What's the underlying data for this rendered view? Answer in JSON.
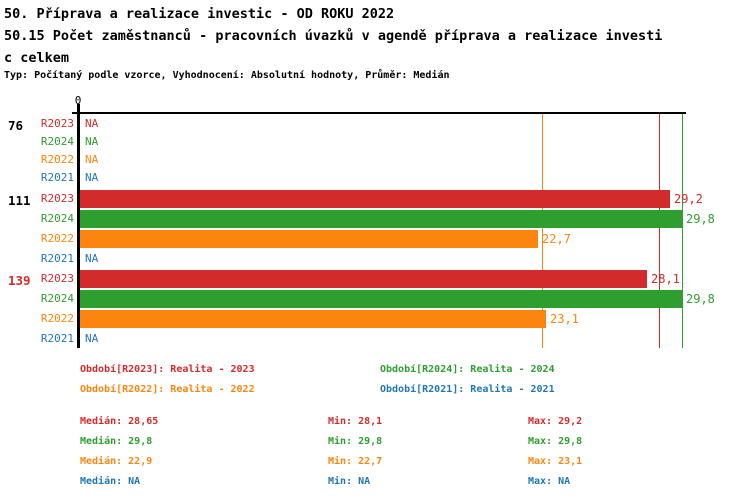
{
  "title_lines": [
    "50. Příprava a realizace investic - OD ROKU 2022",
    "50.15 Počet zaměstnanců - pracovních úvazků v agendě příprava a realizace investi",
    "c celkem"
  ],
  "subtitle": "Typ: Počítaný podle vzorce, Vyhodnocení: Absolutní hodnoty, Průměr: Medián",
  "colors": {
    "R2023": "#d32b2b",
    "R2024": "#2e9e2e",
    "R2022": "#fb850f",
    "R2021": "#1f77b4",
    "axis": "#000000",
    "group_label": "#000000",
    "group_label_highlight": "#d32b2b",
    "background": "#ffffff"
  },
  "chart_data": {
    "type": "bar",
    "orientation": "horizontal",
    "title": "50.15 Počet zaměstnanců - pracovních úvazků v agendě příprava a realizace investic celkem",
    "xlabel": "",
    "ylabel": "",
    "axis": {
      "origin_tick_label": "0",
      "min": 0,
      "max": 30,
      "grid": false
    },
    "series_order": [
      "R2023",
      "R2024",
      "R2022",
      "R2021"
    ],
    "groups": [
      {
        "label": "76",
        "highlight": false,
        "rows": [
          {
            "series": "R2023",
            "value": null,
            "display": "NA"
          },
          {
            "series": "R2024",
            "value": null,
            "display": "NA"
          },
          {
            "series": "R2022",
            "value": null,
            "display": "NA"
          },
          {
            "series": "R2021",
            "value": null,
            "display": "NA"
          }
        ]
      },
      {
        "label": "111",
        "highlight": false,
        "rows": [
          {
            "series": "R2023",
            "value": 29.2,
            "display": "29,2"
          },
          {
            "series": "R2024",
            "value": 29.8,
            "display": "29,8"
          },
          {
            "series": "R2022",
            "value": 22.7,
            "display": "22,7"
          },
          {
            "series": "R2021",
            "value": null,
            "display": "NA"
          }
        ]
      },
      {
        "label": "139",
        "highlight": true,
        "rows": [
          {
            "series": "R2023",
            "value": 28.1,
            "display": "28,1"
          },
          {
            "series": "R2024",
            "value": 29.8,
            "display": "29,8"
          },
          {
            "series": "R2022",
            "value": 23.1,
            "display": "23,1"
          },
          {
            "series": "R2021",
            "value": null,
            "display": "NA"
          }
        ]
      }
    ],
    "median_lines": [
      {
        "series": "R2022",
        "value": 22.9
      },
      {
        "series": "R2023",
        "value": 28.65
      },
      {
        "series": "R2024",
        "value": 29.8
      }
    ]
  },
  "legend": [
    {
      "series": "R2023",
      "text": "Období[R2023]: Realita - 2023"
    },
    {
      "series": "R2024",
      "text": "Období[R2024]: Realita - 2024"
    },
    {
      "series": "R2022",
      "text": "Období[R2022]: Realita - 2022"
    },
    {
      "series": "R2021",
      "text": "Období[R2021]: Realita - 2021"
    }
  ],
  "stats_labels": {
    "median": "Medián",
    "min": "Min",
    "max": "Max"
  },
  "stats": [
    {
      "series": "R2023",
      "median": "28,65",
      "min": "28,1",
      "max": "29,2"
    },
    {
      "series": "R2024",
      "median": "29,8",
      "min": "29,8",
      "max": "29,8"
    },
    {
      "series": "R2022",
      "median": "22,9",
      "min": "22,7",
      "max": "23,1"
    },
    {
      "series": "R2021",
      "median": "NA",
      "min": "NA",
      "max": "NA"
    }
  ]
}
